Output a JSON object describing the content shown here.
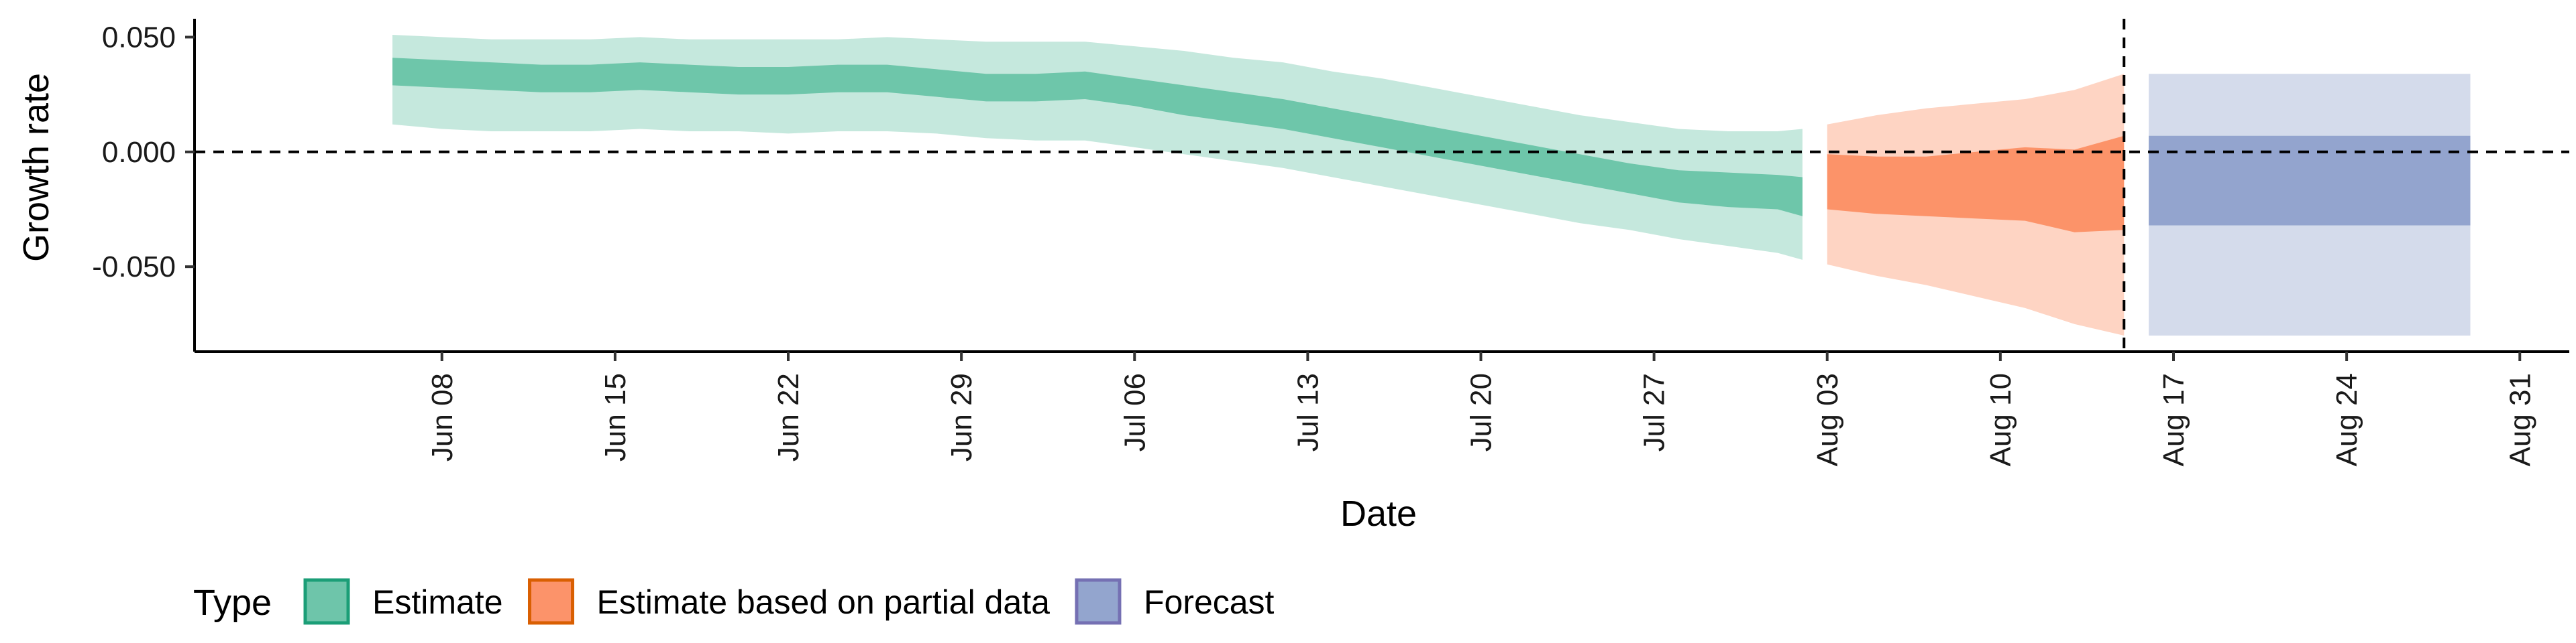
{
  "chart_data": {
    "type": "area",
    "xlabel": "Date",
    "ylabel": "Growth rate",
    "x_axis": {
      "type": "date",
      "range": [
        "2021-05-29",
        "2021-09-02"
      ],
      "ticks": [
        "2021-06-08",
        "2021-06-15",
        "2021-06-22",
        "2021-06-29",
        "2021-07-06",
        "2021-07-13",
        "2021-07-20",
        "2021-07-27",
        "2021-08-03",
        "2021-08-10",
        "2021-08-17",
        "2021-08-24",
        "2021-08-31"
      ],
      "tick_labels": [
        "Jun 08",
        "Jun 15",
        "Jun 22",
        "Jun 29",
        "Jul 06",
        "Jul 13",
        "Jul 20",
        "Jul 27",
        "Aug 03",
        "Aug 10",
        "Aug 17",
        "Aug 24",
        "Aug 31"
      ]
    },
    "y_axis": {
      "range": [
        -0.087,
        0.058
      ],
      "ticks": [
        -0.05,
        0,
        0.05
      ],
      "tick_labels": [
        "-0.050",
        "0.000",
        "0.050"
      ]
    },
    "reference_lines": {
      "horizontal_y": 0,
      "vertical_x": "2021-08-15"
    },
    "legend": {
      "title": "Type",
      "position": "bottom",
      "entries": [
        {
          "label": "Estimate",
          "fill": "#66c2a5",
          "border": "#1b9e77"
        },
        {
          "label": "Estimate based on partial data",
          "fill": "#fc8d62",
          "border": "#d95f02"
        },
        {
          "label": "Forecast",
          "fill": "#8da0cb",
          "border": "#7570b3"
        }
      ]
    },
    "series": [
      {
        "name": "Estimate",
        "color": "#66c2a5",
        "points": [
          {
            "date": "2021-06-06",
            "outer": [
              0.012,
              0.051
            ],
            "inner": [
              0.029,
              0.041
            ]
          },
          {
            "date": "2021-06-08",
            "outer": [
              0.01,
              0.05
            ],
            "inner": [
              0.028,
              0.04
            ]
          },
          {
            "date": "2021-06-10",
            "outer": [
              0.009,
              0.049
            ],
            "inner": [
              0.027,
              0.039
            ]
          },
          {
            "date": "2021-06-12",
            "outer": [
              0.009,
              0.049
            ],
            "inner": [
              0.026,
              0.038
            ]
          },
          {
            "date": "2021-06-14",
            "outer": [
              0.009,
              0.049
            ],
            "inner": [
              0.026,
              0.038
            ]
          },
          {
            "date": "2021-06-16",
            "outer": [
              0.01,
              0.05
            ],
            "inner": [
              0.027,
              0.039
            ]
          },
          {
            "date": "2021-06-18",
            "outer": [
              0.009,
              0.049
            ],
            "inner": [
              0.026,
              0.038
            ]
          },
          {
            "date": "2021-06-20",
            "outer": [
              0.009,
              0.049
            ],
            "inner": [
              0.025,
              0.037
            ]
          },
          {
            "date": "2021-06-22",
            "outer": [
              0.008,
              0.049
            ],
            "inner": [
              0.025,
              0.037
            ]
          },
          {
            "date": "2021-06-24",
            "outer": [
              0.009,
              0.049
            ],
            "inner": [
              0.026,
              0.038
            ]
          },
          {
            "date": "2021-06-26",
            "outer": [
              0.009,
              0.05
            ],
            "inner": [
              0.026,
              0.038
            ]
          },
          {
            "date": "2021-06-28",
            "outer": [
              0.008,
              0.049
            ],
            "inner": [
              0.024,
              0.036
            ]
          },
          {
            "date": "2021-06-30",
            "outer": [
              0.006,
              0.048
            ],
            "inner": [
              0.022,
              0.034
            ]
          },
          {
            "date": "2021-07-02",
            "outer": [
              0.005,
              0.048
            ],
            "inner": [
              0.022,
              0.034
            ]
          },
          {
            "date": "2021-07-04",
            "outer": [
              0.005,
              0.048
            ],
            "inner": [
              0.023,
              0.035
            ]
          },
          {
            "date": "2021-07-06",
            "outer": [
              0.002,
              0.046
            ],
            "inner": [
              0.02,
              0.032
            ]
          },
          {
            "date": "2021-07-08",
            "outer": [
              -0.001,
              0.044
            ],
            "inner": [
              0.016,
              0.029
            ]
          },
          {
            "date": "2021-07-10",
            "outer": [
              -0.004,
              0.041
            ],
            "inner": [
              0.013,
              0.026
            ]
          },
          {
            "date": "2021-07-12",
            "outer": [
              -0.007,
              0.039
            ],
            "inner": [
              0.01,
              0.023
            ]
          },
          {
            "date": "2021-07-14",
            "outer": [
              -0.011,
              0.035
            ],
            "inner": [
              0.006,
              0.019
            ]
          },
          {
            "date": "2021-07-16",
            "outer": [
              -0.015,
              0.032
            ],
            "inner": [
              0.002,
              0.015
            ]
          },
          {
            "date": "2021-07-18",
            "outer": [
              -0.019,
              0.028
            ],
            "inner": [
              -0.002,
              0.011
            ]
          },
          {
            "date": "2021-07-20",
            "outer": [
              -0.023,
              0.024
            ],
            "inner": [
              -0.006,
              0.007
            ]
          },
          {
            "date": "2021-07-22",
            "outer": [
              -0.027,
              0.02
            ],
            "inner": [
              -0.01,
              0.003
            ]
          },
          {
            "date": "2021-07-24",
            "outer": [
              -0.031,
              0.016
            ],
            "inner": [
              -0.014,
              -0.001
            ]
          },
          {
            "date": "2021-07-26",
            "outer": [
              -0.034,
              0.013
            ],
            "inner": [
              -0.018,
              -0.005
            ]
          },
          {
            "date": "2021-07-28",
            "outer": [
              -0.038,
              0.01
            ],
            "inner": [
              -0.022,
              -0.008
            ]
          },
          {
            "date": "2021-07-30",
            "outer": [
              -0.041,
              0.009
            ],
            "inner": [
              -0.024,
              -0.009
            ]
          },
          {
            "date": "2021-08-01",
            "outer": [
              -0.044,
              0.009
            ],
            "inner": [
              -0.025,
              -0.01
            ]
          },
          {
            "date": "2021-08-02",
            "outer": [
              -0.047,
              0.01
            ],
            "inner": [
              -0.028,
              -0.011
            ]
          }
        ]
      },
      {
        "name": "Estimate based on partial data",
        "color": "#fc8d62",
        "points": [
          {
            "date": "2021-08-03",
            "outer": [
              -0.049,
              0.012
            ],
            "inner": [
              -0.025,
              -0.001
            ]
          },
          {
            "date": "2021-08-05",
            "outer": [
              -0.054,
              0.016
            ],
            "inner": [
              -0.027,
              -0.002
            ]
          },
          {
            "date": "2021-08-07",
            "outer": [
              -0.058,
              0.019
            ],
            "inner": [
              -0.028,
              -0.002
            ]
          },
          {
            "date": "2021-08-09",
            "outer": [
              -0.063,
              0.021
            ],
            "inner": [
              -0.029,
              0.0
            ]
          },
          {
            "date": "2021-08-11",
            "outer": [
              -0.068,
              0.023
            ],
            "inner": [
              -0.03,
              0.002
            ]
          },
          {
            "date": "2021-08-13",
            "outer": [
              -0.075,
              0.027
            ],
            "inner": [
              -0.035,
              0.001
            ]
          },
          {
            "date": "2021-08-15",
            "outer": [
              -0.08,
              0.034
            ],
            "inner": [
              -0.034,
              0.007
            ]
          }
        ]
      },
      {
        "name": "Forecast",
        "color": "#8da0cb",
        "points": [
          {
            "date": "2021-08-16",
            "outer": [
              -0.08,
              0.034
            ],
            "inner": [
              -0.032,
              0.007
            ]
          },
          {
            "date": "2021-08-29",
            "outer": [
              -0.08,
              0.034
            ],
            "inner": [
              -0.032,
              0.007
            ]
          }
        ]
      }
    ]
  }
}
